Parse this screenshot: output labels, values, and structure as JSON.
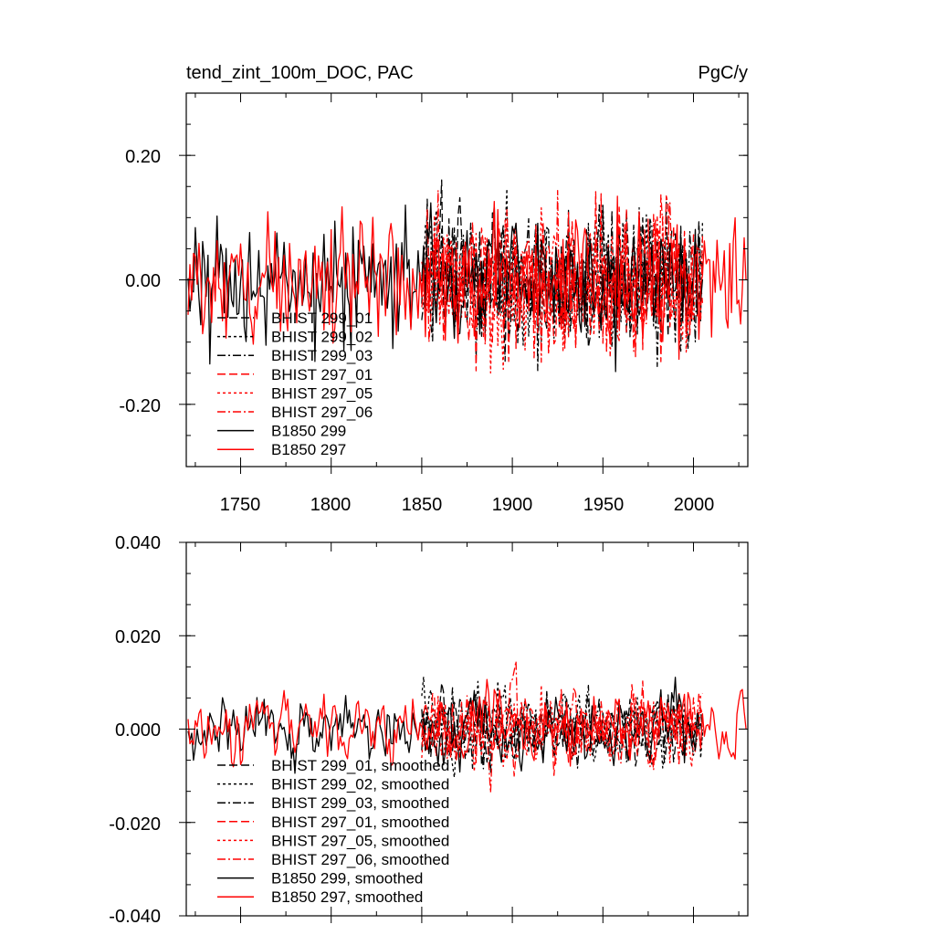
{
  "chart_data": [
    {
      "type": "line",
      "title": "tend_zint_100m_DOC, PAC",
      "units": "PgC/y",
      "xlabel": "",
      "ylabel": "",
      "xlim": [
        1720,
        2030
      ],
      "ylim": [
        -0.3,
        0.3
      ],
      "xticks": [
        1750,
        1800,
        1850,
        1900,
        1950,
        2000
      ],
      "xtick_labels": [
        "1750",
        "1800",
        "1850",
        "1900",
        "1950",
        "2000"
      ],
      "yticks": [
        -0.2,
        0.0,
        0.2
      ],
      "ytick_labels": [
        "-0.20",
        "0.00",
        "0.20"
      ],
      "legend_position": "lower-left",
      "series": [
        {
          "name": "BHIST 299_01",
          "color": "#000000",
          "dash": "long-dash",
          "x_range": [
            1850,
            2005
          ],
          "amplitude": 0.1,
          "seed": 11
        },
        {
          "name": "BHIST 299_02",
          "color": "#000000",
          "dash": "short-dash",
          "x_range": [
            1850,
            2005
          ],
          "amplitude": 0.1,
          "seed": 12
        },
        {
          "name": "BHIST 299_03",
          "color": "#000000",
          "dash": "dash-dot",
          "x_range": [
            1850,
            2005
          ],
          "amplitude": 0.1,
          "seed": 13
        },
        {
          "name": "BHIST 297_01",
          "color": "#ff0000",
          "dash": "long-dash",
          "x_range": [
            1850,
            2005
          ],
          "amplitude": 0.1,
          "seed": 14
        },
        {
          "name": "BHIST 297_05",
          "color": "#ff0000",
          "dash": "short-dash",
          "x_range": [
            1850,
            2005
          ],
          "amplitude": 0.1,
          "seed": 15
        },
        {
          "name": "BHIST 297_06",
          "color": "#ff0000",
          "dash": "dash-dot",
          "x_range": [
            1850,
            2005
          ],
          "amplitude": 0.1,
          "seed": 16
        },
        {
          "name": "B1850 299",
          "color": "#000000",
          "dash": "solid",
          "x_range": [
            1721,
            2005
          ],
          "amplitude": 0.09,
          "seed": 17
        },
        {
          "name": "B1850 297",
          "color": "#ff0000",
          "dash": "solid",
          "x_range": [
            1721,
            2029
          ],
          "amplitude": 0.08,
          "seed": 18
        }
      ]
    },
    {
      "type": "line",
      "title": "",
      "xlabel": "",
      "ylabel": "",
      "xlim": [
        1720,
        2030
      ],
      "ylim": [
        -0.04,
        0.04
      ],
      "xticks": [
        1750,
        1800,
        1850,
        1900,
        1950,
        2000
      ],
      "yticks": [
        -0.04,
        -0.02,
        0.0,
        0.02,
        0.04
      ],
      "ytick_labels": [
        "-0.040",
        "-0.020",
        "0.000",
        "0.020",
        "0.040"
      ],
      "legend_position": "lower-left",
      "series": [
        {
          "name": "BHIST 299_01, smoothed",
          "color": "#000000",
          "dash": "long-dash",
          "x_range": [
            1850,
            2005
          ],
          "amplitude": 0.011,
          "seed": 21
        },
        {
          "name": "BHIST 299_02, smoothed",
          "color": "#000000",
          "dash": "short-dash",
          "x_range": [
            1850,
            2005
          ],
          "amplitude": 0.011,
          "seed": 22
        },
        {
          "name": "BHIST 299_03, smoothed",
          "color": "#000000",
          "dash": "dash-dot",
          "x_range": [
            1850,
            2005
          ],
          "amplitude": 0.011,
          "seed": 23
        },
        {
          "name": "BHIST 297_01, smoothed",
          "color": "#ff0000",
          "dash": "long-dash",
          "x_range": [
            1850,
            2005
          ],
          "amplitude": 0.011,
          "seed": 24
        },
        {
          "name": "BHIST 297_05, smoothed",
          "color": "#ff0000",
          "dash": "short-dash",
          "x_range": [
            1850,
            2005
          ],
          "amplitude": 0.011,
          "seed": 25
        },
        {
          "name": "BHIST 297_06, smoothed",
          "color": "#ff0000",
          "dash": "dash-dot",
          "x_range": [
            1850,
            2005
          ],
          "amplitude": 0.011,
          "seed": 26
        },
        {
          "name": "B1850 299, smoothed",
          "color": "#000000",
          "dash": "solid",
          "x_range": [
            1721,
            2005
          ],
          "amplitude": 0.01,
          "seed": 27
        },
        {
          "name": "B1850 297, smoothed",
          "color": "#ff0000",
          "dash": "solid",
          "x_range": [
            1721,
            2029
          ],
          "amplitude": 0.01,
          "seed": 28
        }
      ]
    }
  ]
}
